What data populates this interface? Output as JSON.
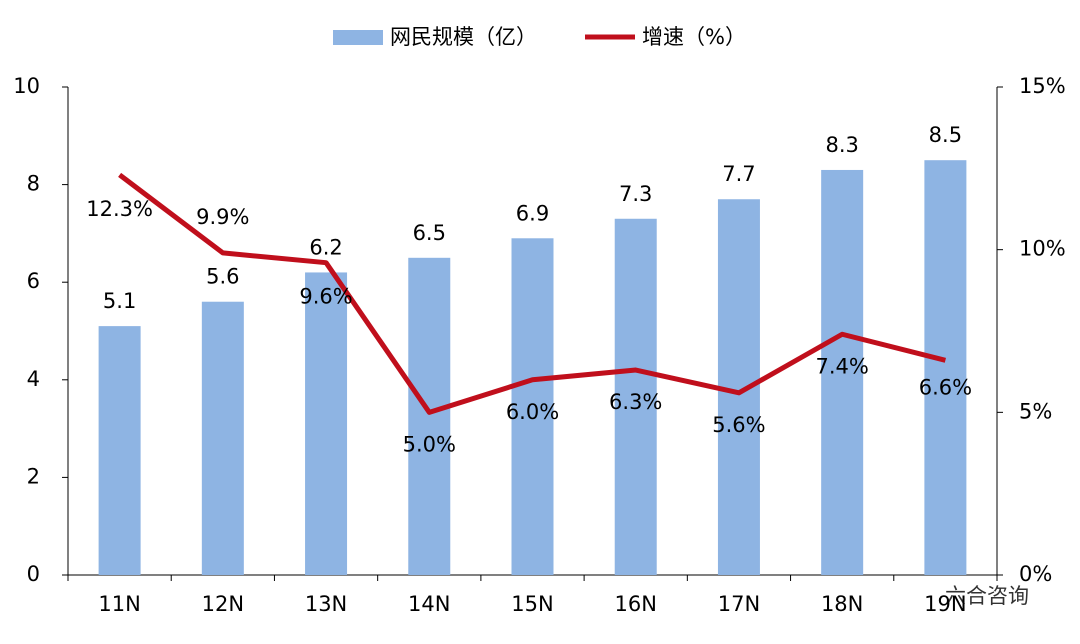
{
  "chart_data": {
    "type": "bar_line",
    "categories": [
      "11N",
      "12N",
      "13N",
      "14N",
      "15N",
      "16N",
      "17N",
      "18N",
      "19N"
    ],
    "series": [
      {
        "name": "网民规模（亿）",
        "type": "bar",
        "color": "#8eb4e3",
        "values": [
          5.1,
          5.6,
          6.2,
          6.5,
          6.9,
          7.3,
          7.7,
          8.3,
          8.5
        ]
      },
      {
        "name": "增速（%）",
        "type": "line",
        "axis": "y2",
        "color": "#c00f1c",
        "values": [
          12.3,
          9.9,
          9.6,
          5.0,
          6.0,
          6.3,
          5.6,
          7.4,
          6.6
        ],
        "value_labels": [
          "12.3%",
          "9.9%",
          "9.6%",
          "5.0%",
          "6.0%",
          "6.3%",
          "5.6%",
          "7.4%",
          "6.6%"
        ]
      }
    ],
    "ylim": [
      0,
      10
    ],
    "yticks": [
      0,
      2,
      4,
      6,
      8,
      10
    ],
    "y2lim": [
      0,
      15
    ],
    "y2ticks": [
      {
        "value": 0,
        "label": "0%"
      },
      {
        "value": 5,
        "label": "5%"
      },
      {
        "value": 10,
        "label": "10%"
      },
      {
        "value": 15,
        "label": "15%"
      }
    ],
    "legend": "top",
    "watermark": "六合咨询"
  }
}
